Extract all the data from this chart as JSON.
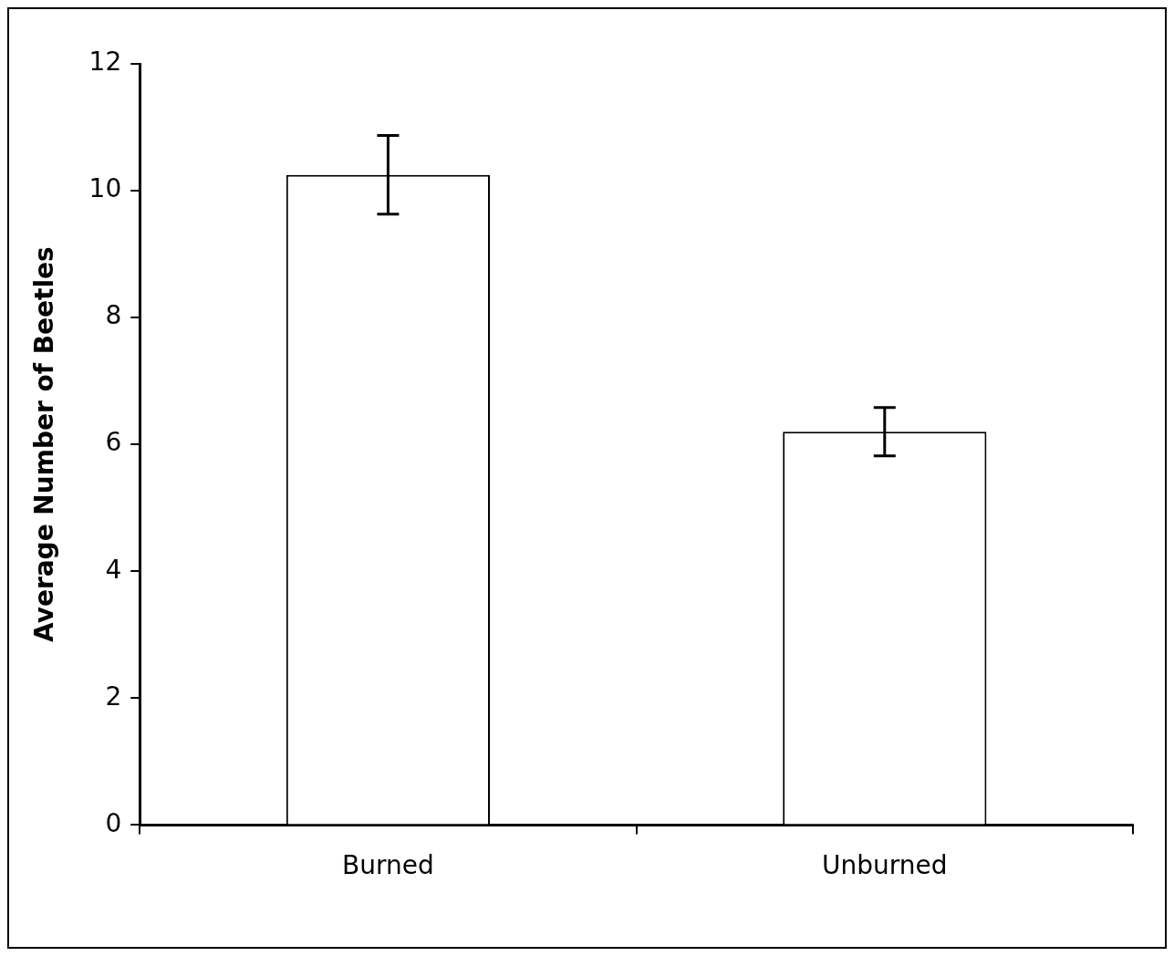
{
  "chart_data": {
    "type": "bar",
    "ylabel": "Average Number of Beetles",
    "categories": [
      "Burned",
      "Unburned"
    ],
    "values": [
      10.25,
      6.2
    ],
    "errors": [
      0.62,
      0.38
    ],
    "color": "#ffffff",
    "ylim": [
      0,
      12
    ],
    "yticks": [
      0,
      2,
      4,
      6,
      8,
      10,
      12
    ],
    "grid": false,
    "legend": false
  }
}
